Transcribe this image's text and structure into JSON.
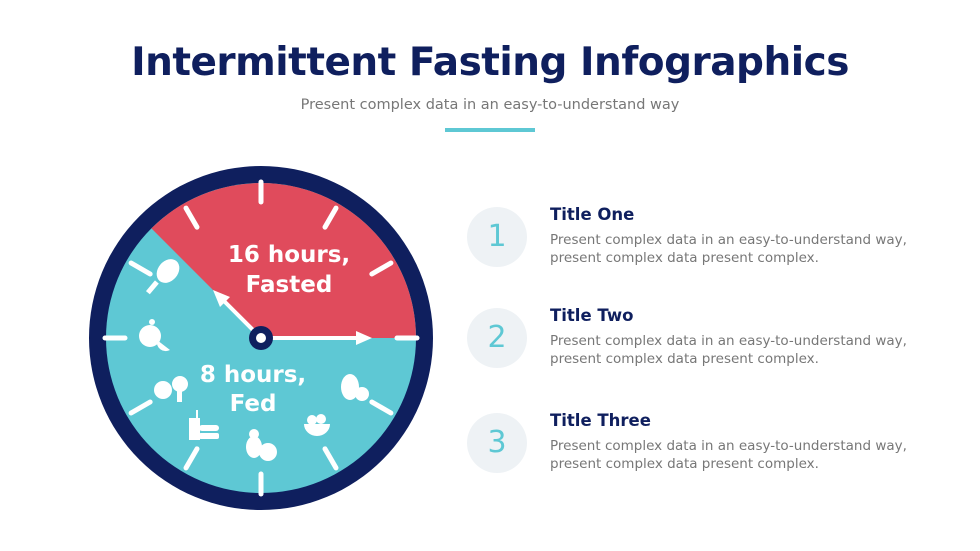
{
  "header": {
    "title": "Intermittent Fasting Infographics",
    "subtitle": "Present complex data in an easy-to-understand way"
  },
  "clock": {
    "fasted": {
      "line1": "16 hours,",
      "line2": "Fasted",
      "color": "#e04b5c"
    },
    "fed": {
      "line1": "8 hours,",
      "line2": "Fed",
      "color": "#5ec8d4"
    },
    "ring_color": "#0f1f5e",
    "icons": [
      "drumstick-icon",
      "orange-icon",
      "apple-broccoli-icon",
      "drink-burger-icon",
      "pear-apple-icon",
      "salad-bowl-icon",
      "vegetables-icon"
    ]
  },
  "items": [
    {
      "number": "1",
      "title": "Title One",
      "description": "Present complex data in an easy-to-understand way, present complex data present complex."
    },
    {
      "number": "2",
      "title": "Title Two",
      "description": "Present complex data in an easy-to-understand way, present complex data present complex."
    },
    {
      "number": "3",
      "title": "Title Three",
      "description": "Present complex data in an easy-to-understand way, present complex data present complex."
    }
  ]
}
